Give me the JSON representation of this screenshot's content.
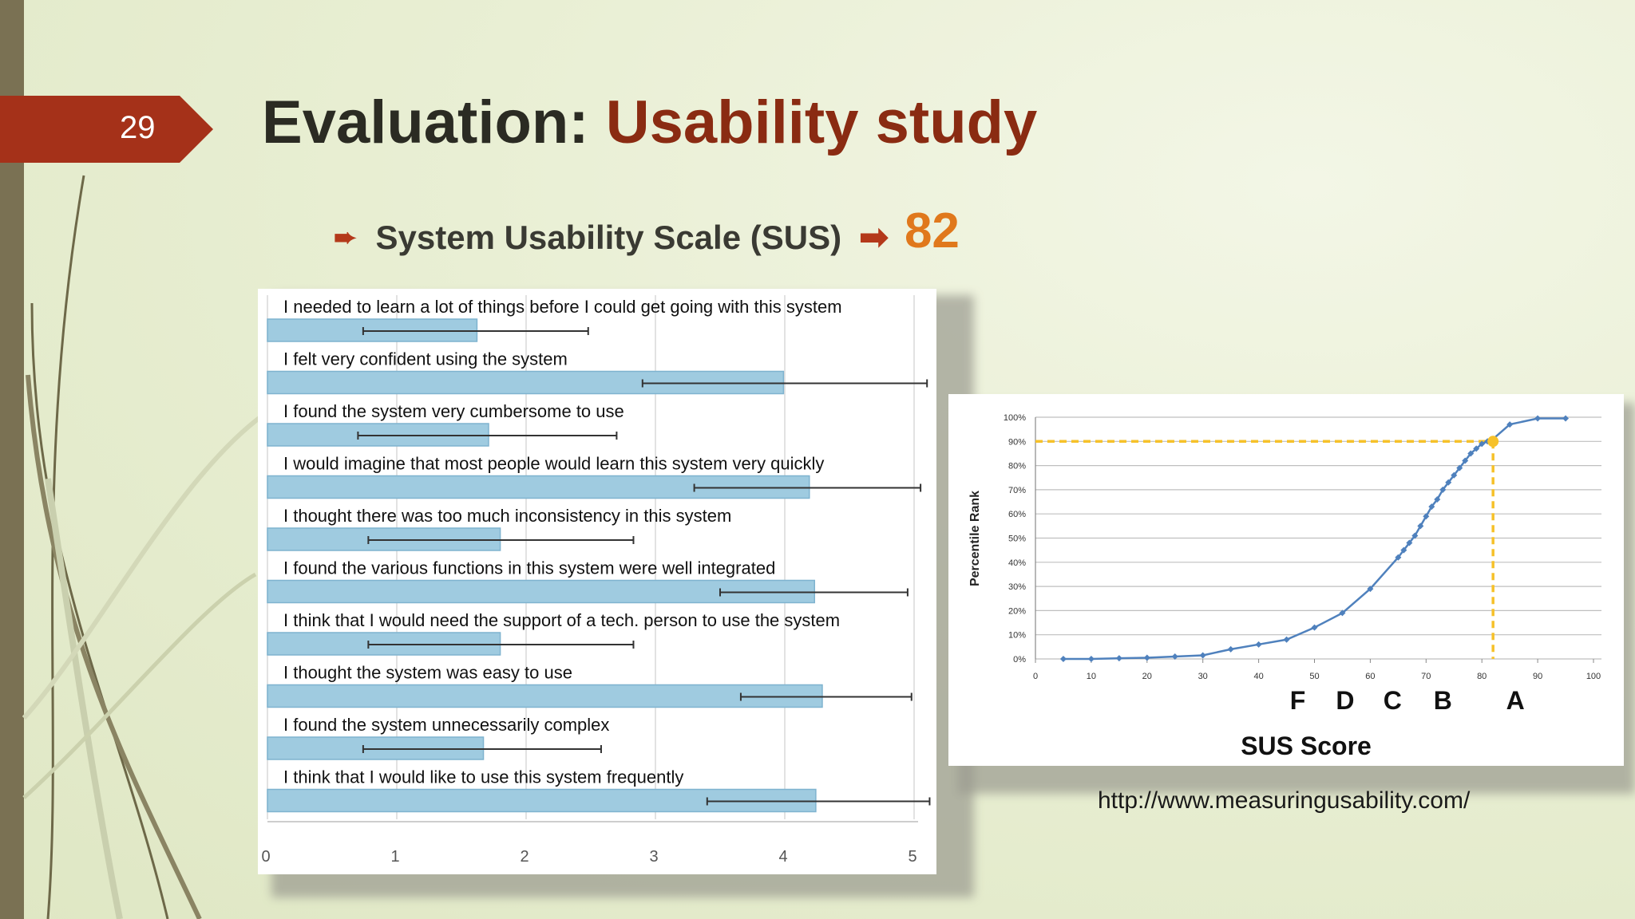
{
  "slide": {
    "number": "29",
    "title_part1": "Evaluation: ",
    "title_part2": "Usability study",
    "bullet_text": "System Usability Scale (SUS)",
    "score": "82",
    "url": "http://www.measuringusability.com/"
  },
  "colors": {
    "accent_red": "#b4391a",
    "title_dark_red": "#8a2b12",
    "score_orange": "#e0781c",
    "bar_fill": "#9fcbe0",
    "curve_blue": "#4f81bd",
    "marker_yellow": "#f6c12a"
  },
  "chart_data": [
    {
      "type": "bar",
      "orientation": "horizontal",
      "categories": [
        "I needed to learn a lot of things before I could get going with this system",
        "I felt very confident using the system",
        "I found the system very cumbersome to use",
        "I would imagine that most people would learn this system very quickly",
        "I thought there was too much inconsistency in this system",
        "I found the various functions in this system were well integrated",
        "I think that I would need the support of a tech. person to use the system",
        "I thought the system was easy to use",
        "I found the system unnecessarily complex",
        "I think that I would like to use this system frequently"
      ],
      "values": [
        1.62,
        3.99,
        1.71,
        4.19,
        1.8,
        4.23,
        1.8,
        4.29,
        1.67,
        4.24
      ],
      "error_low": [
        0.74,
        2.9,
        0.7,
        3.3,
        0.78,
        3.5,
        0.78,
        3.66,
        0.74,
        3.4
      ],
      "error_high": [
        2.48,
        5.1,
        2.7,
        5.05,
        2.83,
        4.95,
        2.83,
        4.98,
        2.58,
        5.12
      ],
      "xlim": [
        0,
        5
      ],
      "xticks": [
        "0",
        "1",
        "2",
        "3",
        "4",
        "5"
      ],
      "grid": true
    },
    {
      "type": "line",
      "ylabel": "Percentile Rank",
      "xlabel": "SUS Score",
      "xlim": [
        0,
        100
      ],
      "ylim": [
        0,
        100
      ],
      "xticks": [
        "0",
        "10",
        "20",
        "30",
        "40",
        "50",
        "60",
        "70",
        "80",
        "90",
        "100"
      ],
      "yticks": [
        "0%",
        "10%",
        "20%",
        "30%",
        "40%",
        "50%",
        "60%",
        "70%",
        "80%",
        "90%",
        "100%"
      ],
      "grades": [
        {
          "label": "F",
          "x": 47
        },
        {
          "label": "D",
          "x": 55.5
        },
        {
          "label": "C",
          "x": 64
        },
        {
          "label": "B",
          "x": 73
        },
        {
          "label": "A",
          "x": 86
        }
      ],
      "series": [
        {
          "x": [
            5,
            10,
            15,
            20,
            25,
            30,
            35,
            40,
            45,
            50,
            55,
            60,
            65,
            66,
            67,
            68,
            69,
            70,
            71,
            72,
            73,
            74,
            75,
            76,
            77,
            78,
            79,
            80,
            81,
            82,
            85,
            90,
            95
          ],
          "y": [
            0,
            0,
            0.3,
            0.5,
            1,
            1.5,
            4,
            6,
            8,
            13,
            19,
            29,
            42,
            45,
            48,
            51,
            55,
            59,
            63,
            66,
            70,
            73,
            76,
            79,
            82,
            85,
            87,
            89,
            90,
            91,
            97,
            99.5,
            99.5
          ]
        }
      ],
      "highlight": {
        "x": 82,
        "y": 90
      },
      "grid": true
    }
  ]
}
